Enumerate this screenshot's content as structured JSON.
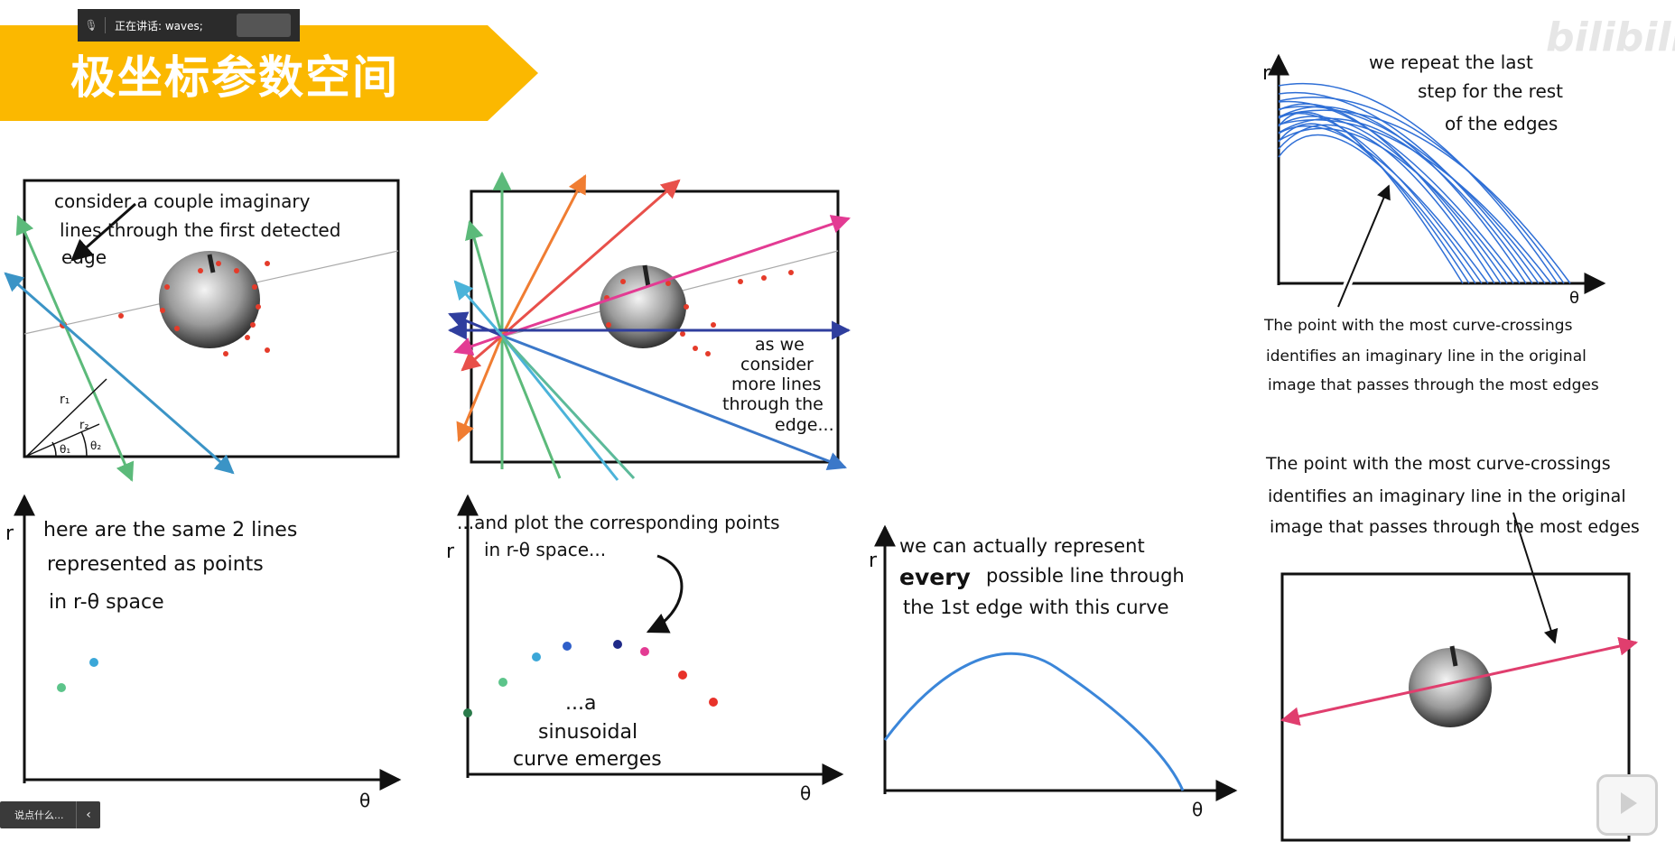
{
  "banner": {
    "title": "极坐标参数空间",
    "color": "#fbb800"
  },
  "speaking": {
    "label": "正在讲话: waves;"
  },
  "chat": {
    "placeholder": "说点什么..."
  },
  "watermark": {
    "bili": "bilibili"
  },
  "panel1": {
    "caption": [
      "consider a couple imaginary",
      "lines through the first detected",
      "edge"
    ],
    "labels": {
      "r1": "r₁",
      "r2": "r₂",
      "t1": "θ₁",
      "t2": "θ₂"
    }
  },
  "panel2": {
    "caption": [
      "as we",
      "consider",
      "more lines",
      "through the",
      "edge..."
    ]
  },
  "plot1": {
    "caption": [
      "here are the same 2 lines",
      "represented as points",
      "in r-θ space"
    ],
    "ylabel": "r",
    "xlabel": "θ"
  },
  "plot2": {
    "caption_top": [
      "...and plot the corresponding points",
      "in r-θ space..."
    ],
    "caption_bottom": [
      "...a",
      "sinusoidal",
      "curve emerges"
    ],
    "ylabel": "r",
    "xlabel": "θ"
  },
  "plot3": {
    "caption": [
      "we can actually represent",
      "every",
      "possible line through",
      "the 1st edge with this curve"
    ],
    "ylabel": "r",
    "xlabel": "θ"
  },
  "plot4": {
    "caption": [
      "we repeat the last",
      "step for the rest",
      "of the edges"
    ],
    "ylabel": "r",
    "xlabel": "θ",
    "note": [
      "The point with the most curve-crossings",
      "identifies an imaginary line in the original",
      "image that passes through the most edges"
    ]
  },
  "panel5": {
    "note": [
      "The point with the most curve-crossings",
      "identifies an imaginary line in the original",
      "image that passes through the most edges"
    ]
  }
}
